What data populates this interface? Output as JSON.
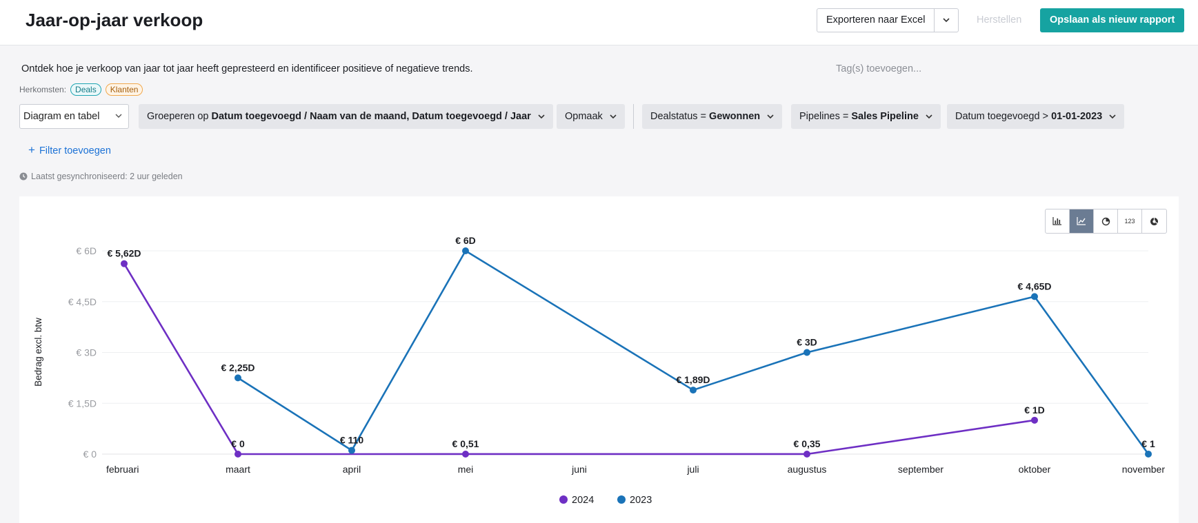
{
  "header": {
    "title": "Jaar-op-jaar verkoop",
    "export_label": "Exporteren naar Excel",
    "reset_label": "Herstellen",
    "save_label": "Opslaan als nieuw rapport"
  },
  "description": "Ontdek hoe je verkoop van jaar tot jaar heeft gepresteerd en identificeer positieve of negatieve trends.",
  "tags": {
    "placeholder": "Tag(s) toevoegen..."
  },
  "origins": {
    "label": "Herkomsten:",
    "deals": "Deals",
    "klanten": "Klanten"
  },
  "filters": {
    "view": "Diagram en tabel",
    "group_prefix": "Groeperen op",
    "group_value": "Datum toegevoegd / Naam van de maand, Datum toegevoegd / Jaar",
    "format": "Opmaak",
    "deal_status_prefix": "Dealstatus =",
    "deal_status_value": "Gewonnen",
    "pipelines_prefix": "Pipelines =",
    "pipelines_value": "Sales Pipeline",
    "date_prefix": "Datum toegevoegd >",
    "date_value": "01-01-2023",
    "add_filter": "Filter toevoegen"
  },
  "sync": "Laatst gesynchroniseerd: 2 uur geleden",
  "view_toggles": {
    "number_label": "123",
    "active": "line-chart"
  },
  "colors": {
    "series_2024": "#6e2fc4",
    "series_2023": "#1a73b8",
    "accent": "#16a3a1",
    "link": "#1c72d6"
  },
  "chart_data": {
    "type": "line",
    "ylabel": "Bedrag excl. btw",
    "categories": [
      "februari",
      "maart",
      "april",
      "mei",
      "juni",
      "juli",
      "augustus",
      "september",
      "oktober",
      "november"
    ],
    "yticks": [
      "€ 0",
      "€ 1,5D",
      "€ 3D",
      "€ 4,5D",
      "€ 6D"
    ],
    "ylim": [
      0,
      6000
    ],
    "grid": true,
    "legend_position": "bottom",
    "series": [
      {
        "name": "2024",
        "color": "#6e2fc4",
        "points": [
          {
            "category": "februari",
            "value": 5620,
            "label": "€ 5,62D"
          },
          {
            "category": "maart",
            "value": 0,
            "label": "€ 0"
          },
          {
            "category": "mei",
            "value": 0.51,
            "label": "€ 0,51"
          },
          {
            "category": "augustus",
            "value": 0.35,
            "label": "€ 0,35"
          },
          {
            "category": "oktober",
            "value": 1000,
            "label": "€ 1D"
          }
        ]
      },
      {
        "name": "2023",
        "color": "#1a73b8",
        "points": [
          {
            "category": "maart",
            "value": 2250,
            "label": "€ 2,25D"
          },
          {
            "category": "april",
            "value": 110,
            "label": "€ 110"
          },
          {
            "category": "mei",
            "value": 6000,
            "label": "€ 6D"
          },
          {
            "category": "juli",
            "value": 1890,
            "label": "€ 1,89D"
          },
          {
            "category": "augustus",
            "value": 3000,
            "label": "€ 3D"
          },
          {
            "category": "oktober",
            "value": 4650,
            "label": "€ 4,65D"
          },
          {
            "category": "november",
            "value": 1,
            "label": "€ 1"
          }
        ]
      }
    ]
  }
}
